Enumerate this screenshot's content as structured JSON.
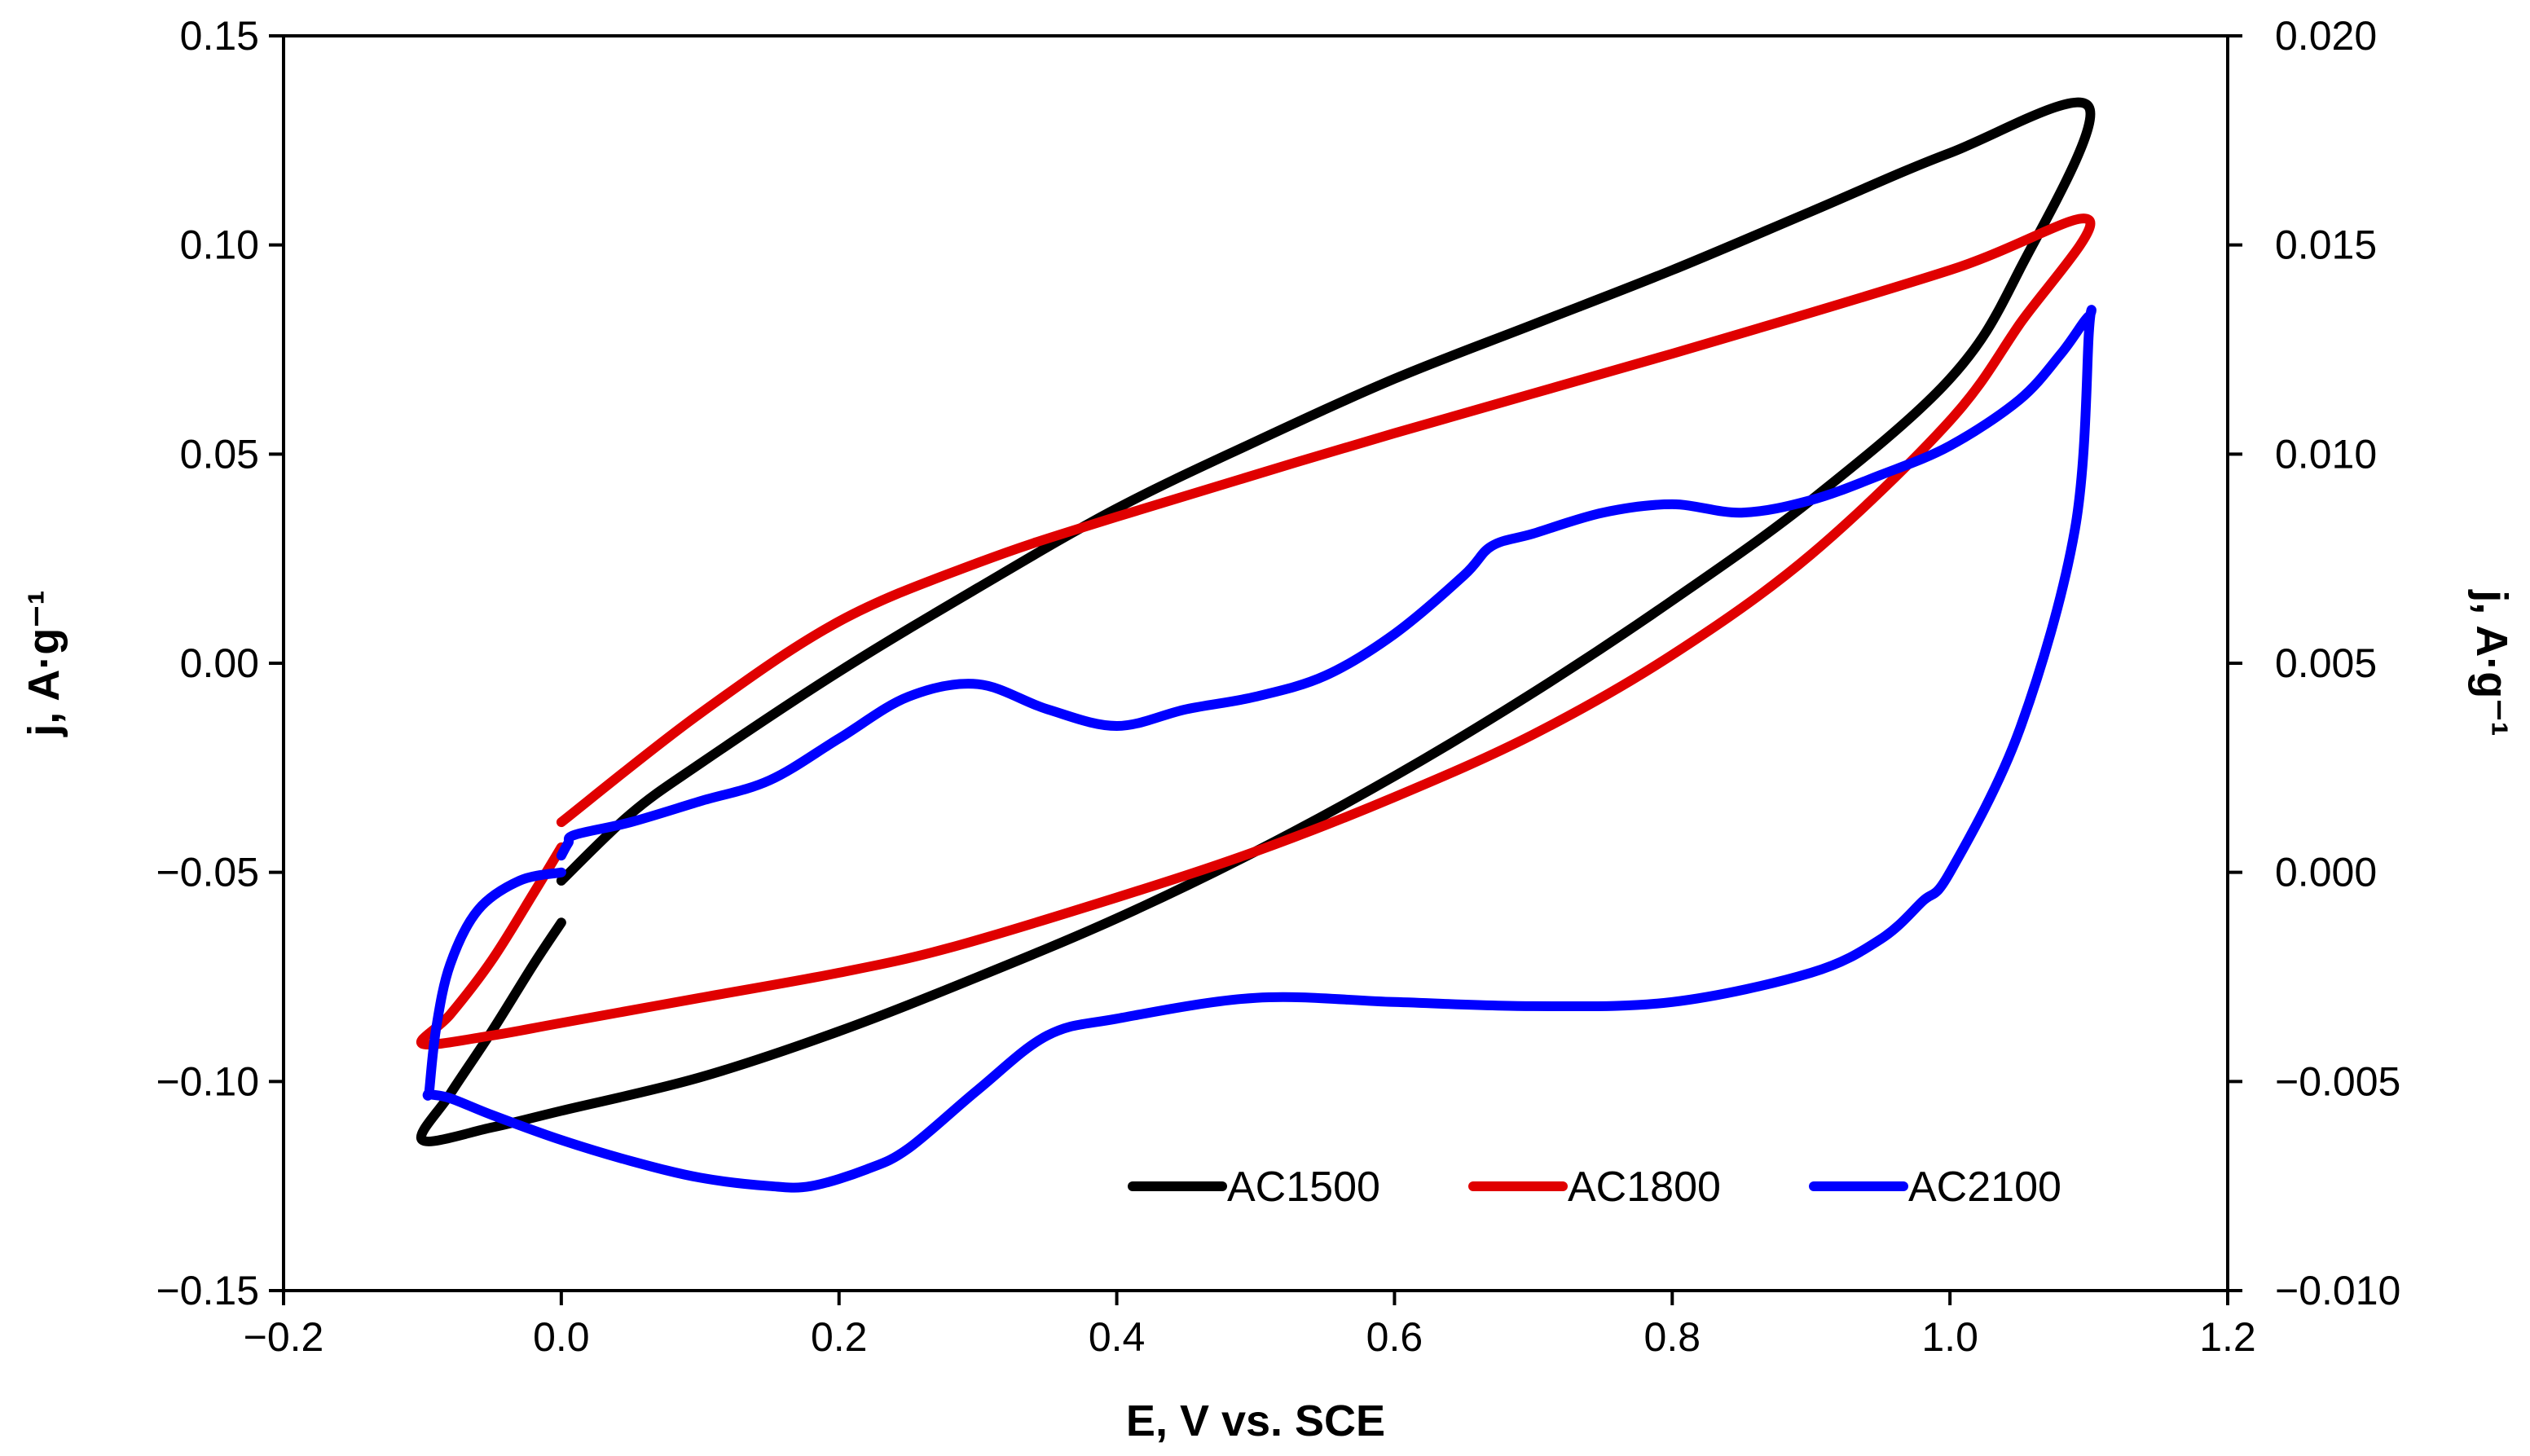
{
  "chart_data": {
    "type": "line",
    "xlabel": "E, V vs. SCE",
    "ylabel": "j, A·g⁻¹",
    "y2label": "j, A·g⁻¹",
    "xlim": [
      -0.2,
      1.2
    ],
    "ylim": [
      -0.15,
      0.15
    ],
    "y2lim": [
      -0.01,
      0.02
    ],
    "xticks": [
      -0.2,
      0.0,
      0.2,
      0.4,
      0.6,
      0.8,
      1.0,
      1.2
    ],
    "xtick_labels": [
      "−0.2",
      "0.0",
      "0.2",
      "0.4",
      "0.6",
      "0.8",
      "1.0",
      "1.2"
    ],
    "yticks": [
      -0.15,
      -0.1,
      -0.05,
      0.0,
      0.05,
      0.1,
      0.15
    ],
    "ytick_labels": [
      "−0.15",
      "−0.10",
      "−0.05",
      "0.00",
      "0.05",
      "0.10",
      "0.15"
    ],
    "y2ticks": [
      -0.01,
      -0.005,
      0.0,
      0.005,
      0.01,
      0.015,
      0.02
    ],
    "y2tick_labels": [
      "−0.010",
      "−0.005",
      "0.000",
      "0.005",
      "0.010",
      "0.015",
      "0.020"
    ],
    "grid": false,
    "legend_position": "bottom-right",
    "series": [
      {
        "name": "AC1500",
        "color": "#000000",
        "axis": "left",
        "x": [
          0.0,
          -0.02,
          -0.05,
          -0.08,
          -0.1,
          -0.05,
          0.0,
          0.1,
          0.2,
          0.3,
          0.4,
          0.5,
          0.6,
          0.7,
          0.8,
          0.9,
          1.0,
          1.05,
          1.1,
          1.0,
          0.9,
          0.8,
          0.7,
          0.6,
          0.5,
          0.4,
          0.3,
          0.2,
          0.1,
          0.05,
          0.0
        ],
        "y": [
          -0.062,
          -0.072,
          -0.088,
          -0.103,
          -0.114,
          -0.111,
          -0.107,
          -0.099,
          -0.088,
          -0.075,
          -0.061,
          -0.045,
          -0.027,
          -0.007,
          0.015,
          0.039,
          0.068,
          0.094,
          0.133,
          0.122,
          0.108,
          0.094,
          0.081,
          0.068,
          0.053,
          0.037,
          0.018,
          -0.002,
          -0.024,
          -0.036,
          -0.052
        ]
      },
      {
        "name": "AC1800",
        "color": "#e00000",
        "axis": "left",
        "x": [
          0.0,
          -0.02,
          -0.05,
          -0.08,
          -0.1,
          -0.05,
          0.0,
          0.1,
          0.2,
          0.28,
          0.4,
          0.5,
          0.6,
          0.7,
          0.8,
          0.9,
          1.0,
          1.05,
          1.1,
          1.0,
          0.8,
          0.6,
          0.4,
          0.3,
          0.2,
          0.1,
          0.0
        ],
        "y": [
          -0.044,
          -0.055,
          -0.071,
          -0.084,
          -0.091,
          -0.089,
          -0.086,
          -0.08,
          -0.074,
          -0.068,
          -0.056,
          -0.045,
          -0.032,
          -0.017,
          0.002,
          0.026,
          0.058,
          0.081,
          0.106,
          0.094,
          0.074,
          0.055,
          0.035,
          0.024,
          0.01,
          -0.012,
          -0.038
        ]
      },
      {
        "name": "AC2100",
        "color": "#0000ff",
        "axis": "right",
        "x": [
          0.0,
          -0.03,
          -0.06,
          -0.08,
          -0.09,
          -0.095,
          -0.095,
          -0.08,
          -0.05,
          0.0,
          0.05,
          0.1,
          0.15,
          0.18,
          0.22,
          0.25,
          0.3,
          0.35,
          0.4,
          0.5,
          0.6,
          0.7,
          0.8,
          0.9,
          0.95,
          0.98,
          1.0,
          1.05,
          1.09,
          1.1,
          1.1,
          1.08,
          1.05,
          1.0,
          0.95,
          0.9,
          0.85,
          0.8,
          0.75,
          0.7,
          0.67,
          0.65,
          0.6,
          0.55,
          0.5,
          0.45,
          0.4,
          0.35,
          0.3,
          0.25,
          0.2,
          0.15,
          0.1,
          0.05,
          0.01,
          0.005,
          0.0
        ],
        "y": [
          0.0,
          -0.0002,
          -0.0009,
          -0.0022,
          -0.0037,
          -0.0052,
          -0.0053,
          -0.0054,
          -0.0058,
          -0.0064,
          -0.0069,
          -0.0073,
          -0.0075,
          -0.0075,
          -0.0071,
          -0.0066,
          -0.0052,
          -0.0039,
          -0.0035,
          -0.003,
          -0.0031,
          -0.0032,
          -0.0031,
          -0.0024,
          -0.0016,
          -0.0007,
          0.0,
          0.0034,
          0.0082,
          0.0129,
          0.0133,
          0.0124,
          0.0113,
          0.0102,
          0.0095,
          0.0089,
          0.0086,
          0.0088,
          0.0086,
          0.0081,
          0.0078,
          0.0071,
          0.0057,
          0.0047,
          0.0042,
          0.0039,
          0.0035,
          0.0039,
          0.0045,
          0.0042,
          0.0032,
          0.0022,
          0.0017,
          0.0012,
          0.0009,
          0.0007,
          0.0004
        ]
      }
    ]
  }
}
